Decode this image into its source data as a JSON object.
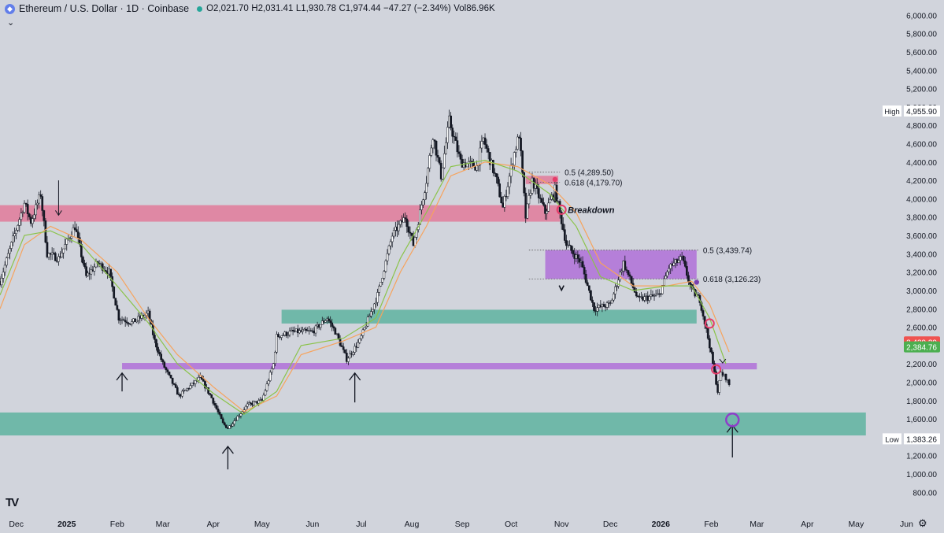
{
  "header": {
    "title": "Ethereum / U.S. Dollar · 1D · Coinbase",
    "open": "O2,021.70",
    "high": "H2,031.41",
    "low": "L1,930.78",
    "close": "C1,974.44",
    "change": "−47.27 (−2.34%)",
    "volume": "Vol86.96K"
  },
  "chevron_icon": "chevron-down-icon",
  "tv_logo": "TV",
  "settings_icon": "gear-icon",
  "chart_data": {
    "type": "candlestick",
    "title": "Ethereum / U.S. Dollar · 1D · Coinbase",
    "ylim": [
      640,
      6080
    ],
    "y_ticks": [
      800,
      1000,
      1200,
      1400,
      1600,
      1800,
      2000,
      2200,
      2400,
      2600,
      2800,
      3000,
      3200,
      3400,
      3600,
      3800,
      4000,
      4200,
      4400,
      4600,
      4800,
      5000,
      5200,
      5400,
      5600,
      5800,
      6000
    ],
    "y_tick_labels": [
      "800.00",
      "1,000.00",
      "1,200.00",
      "1,400.00",
      "1,600.00",
      "1,800.00",
      "2,000.00",
      "2,200.00",
      "2,400.00",
      "2,600.00",
      "2,800.00",
      "3,000.00",
      "3,200.00",
      "3,400.00",
      "3,600.00",
      "3,800.00",
      "4,000.00",
      "4,200.00",
      "4,400.00",
      "4,600.00",
      "4,800.00",
      "5,000.00",
      "5,200.00",
      "5,400.00",
      "5,600.00",
      "5,800.00",
      "6,000.00"
    ],
    "x_start": "2024-11-21",
    "x_end": "2026-06-24",
    "x_ticks": [
      {
        "label": "Dec",
        "date": "2024-12-01",
        "bold": false
      },
      {
        "label": "2025",
        "date": "2025-01-01",
        "bold": true
      },
      {
        "label": "Feb",
        "date": "2025-02-01",
        "bold": false
      },
      {
        "label": "Mar",
        "date": "2025-03-01",
        "bold": false
      },
      {
        "label": "Apr",
        "date": "2025-04-01",
        "bold": false
      },
      {
        "label": "May",
        "date": "2025-05-01",
        "bold": false
      },
      {
        "label": "Jun",
        "date": "2025-06-01",
        "bold": false
      },
      {
        "label": "Jul",
        "date": "2025-07-01",
        "bold": false
      },
      {
        "label": "Aug",
        "date": "2025-08-01",
        "bold": false
      },
      {
        "label": "Sep",
        "date": "2025-09-01",
        "bold": false
      },
      {
        "label": "Oct",
        "date": "2025-10-01",
        "bold": false
      },
      {
        "label": "Nov",
        "date": "2025-11-01",
        "bold": false
      },
      {
        "label": "Dec",
        "date": "2025-12-01",
        "bold": false
      },
      {
        "label": "2026",
        "date": "2026-01-01",
        "bold": true
      },
      {
        "label": "Feb",
        "date": "2026-02-01",
        "bold": false
      },
      {
        "label": "Mar",
        "date": "2026-03-01",
        "bold": false
      },
      {
        "label": "Apr",
        "date": "2026-04-01",
        "bold": false
      },
      {
        "label": "May",
        "date": "2026-05-01",
        "bold": false
      },
      {
        "label": "Jun",
        "date": "2026-06-01",
        "bold": false
      }
    ],
    "price_path": [
      [
        "2024-11-21",
        3100
      ],
      [
        "2024-11-28",
        3500
      ],
      [
        "2024-12-06",
        3950
      ],
      [
        "2024-12-10",
        3750
      ],
      [
        "2024-12-16",
        4050
      ],
      [
        "2024-12-20",
        3400
      ],
      [
        "2024-12-27",
        3350
      ],
      [
        "2025-01-06",
        3700
      ],
      [
        "2025-01-13",
        3150
      ],
      [
        "2025-01-20",
        3300
      ],
      [
        "2025-01-27",
        3200
      ],
      [
        "2025-02-02",
        2700
      ],
      [
        "2025-02-10",
        2650
      ],
      [
        "2025-02-20",
        2750
      ],
      [
        "2025-02-24",
        2450
      ],
      [
        "2025-03-01",
        2200
      ],
      [
        "2025-03-11",
        1850
      ],
      [
        "2025-03-24",
        2050
      ],
      [
        "2025-03-31",
        1830
      ],
      [
        "2025-04-07",
        1550
      ],
      [
        "2025-04-10",
        1500
      ],
      [
        "2025-04-22",
        1750
      ],
      [
        "2025-05-01",
        1800
      ],
      [
        "2025-05-08",
        2200
      ],
      [
        "2025-05-10",
        2500
      ],
      [
        "2025-05-20",
        2550
      ],
      [
        "2025-06-01",
        2550
      ],
      [
        "2025-06-10",
        2700
      ],
      [
        "2025-06-15",
        2550
      ],
      [
        "2025-06-22",
        2250
      ],
      [
        "2025-06-30",
        2450
      ],
      [
        "2025-07-11",
        2950
      ],
      [
        "2025-07-20",
        3600
      ],
      [
        "2025-07-28",
        3800
      ],
      [
        "2025-08-02",
        3500
      ],
      [
        "2025-08-10",
        4200
      ],
      [
        "2025-08-14",
        4700
      ],
      [
        "2025-08-19",
        4250
      ],
      [
        "2025-08-24",
        4850
      ],
      [
        "2025-08-31",
        4400
      ],
      [
        "2025-09-10",
        4350
      ],
      [
        "2025-09-14",
        4650
      ],
      [
        "2025-09-22",
        4200
      ],
      [
        "2025-09-26",
        3900
      ],
      [
        "2025-10-03",
        4500
      ],
      [
        "2025-10-06",
        4700
      ],
      [
        "2025-10-10",
        3800
      ],
      [
        "2025-10-14",
        4200
      ],
      [
        "2025-10-22",
        3850
      ],
      [
        "2025-10-28",
        4100
      ],
      [
        "2025-11-04",
        3500
      ],
      [
        "2025-11-13",
        3300
      ],
      [
        "2025-11-21",
        2800
      ],
      [
        "2025-12-01",
        2850
      ],
      [
        "2025-12-09",
        3300
      ],
      [
        "2025-12-18",
        2900
      ],
      [
        "2025-12-31",
        2950
      ],
      [
        "2026-01-06",
        3250
      ],
      [
        "2026-01-14",
        3350
      ],
      [
        "2026-01-20",
        3000
      ],
      [
        "2026-01-25",
        2900
      ],
      [
        "2026-01-31",
        2400
      ],
      [
        "2026-02-05",
        1900
      ],
      [
        "2026-02-07",
        2100
      ],
      [
        "2026-02-10",
        2050
      ],
      [
        "2026-02-12",
        1974
      ]
    ],
    "ma_lines": [
      {
        "color": "#f7a35c",
        "points": [
          [
            "2024-11-21",
            2800
          ],
          [
            "2024-12-06",
            3500
          ],
          [
            "2024-12-22",
            3700
          ],
          [
            "2025-01-10",
            3550
          ],
          [
            "2025-02-01",
            3200
          ],
          [
            "2025-02-20",
            2700
          ],
          [
            "2025-03-10",
            2300
          ],
          [
            "2025-04-01",
            1950
          ],
          [
            "2025-04-20",
            1680
          ],
          [
            "2025-05-10",
            1850
          ],
          [
            "2025-05-25",
            2300
          ],
          [
            "2025-06-20",
            2450
          ],
          [
            "2025-07-10",
            2600
          ],
          [
            "2025-07-25",
            3200
          ],
          [
            "2025-08-10",
            3700
          ],
          [
            "2025-08-25",
            4250
          ],
          [
            "2025-09-15",
            4400
          ],
          [
            "2025-10-05",
            4350
          ],
          [
            "2025-10-25",
            4150
          ],
          [
            "2025-11-10",
            3850
          ],
          [
            "2025-11-25",
            3300
          ],
          [
            "2025-12-15",
            3050
          ],
          [
            "2026-01-05",
            3050
          ],
          [
            "2026-01-20",
            3100
          ],
          [
            "2026-01-31",
            2850
          ],
          [
            "2026-02-12",
            2330
          ]
        ]
      },
      {
        "color": "#8bc34a",
        "points": [
          [
            "2024-11-21",
            2950
          ],
          [
            "2024-12-06",
            3600
          ],
          [
            "2024-12-22",
            3650
          ],
          [
            "2025-01-10",
            3500
          ],
          [
            "2025-02-01",
            3050
          ],
          [
            "2025-02-20",
            2650
          ],
          [
            "2025-03-10",
            2200
          ],
          [
            "2025-04-01",
            1880
          ],
          [
            "2025-04-20",
            1650
          ],
          [
            "2025-05-10",
            1900
          ],
          [
            "2025-05-25",
            2400
          ],
          [
            "2025-06-20",
            2480
          ],
          [
            "2025-07-10",
            2700
          ],
          [
            "2025-07-25",
            3350
          ],
          [
            "2025-08-10",
            3850
          ],
          [
            "2025-08-25",
            4350
          ],
          [
            "2025-09-15",
            4420
          ],
          [
            "2025-10-05",
            4300
          ],
          [
            "2025-10-25",
            4050
          ],
          [
            "2025-11-10",
            3700
          ],
          [
            "2025-11-25",
            3150
          ],
          [
            "2025-12-15",
            3000
          ],
          [
            "2026-01-05",
            3050
          ],
          [
            "2026-01-20",
            3050
          ],
          [
            "2026-01-31",
            2700
          ],
          [
            "2026-02-10",
            2200
          ]
        ]
      }
    ],
    "zones": [
      {
        "color": "#e27a9a",
        "opacity": 0.85,
        "x0": "2024-11-21",
        "x1": "2025-10-31",
        "y0": 3750,
        "y1": 3930
      },
      {
        "color": "#e27a9a",
        "opacity": 0.85,
        "x0": "2025-10-10",
        "x1": "2025-10-30",
        "y0": 4160,
        "y1": 4250
      },
      {
        "color": "#b070d8",
        "opacity": 0.85,
        "x0": "2025-10-22",
        "x1": "2026-01-23",
        "y0": 3126,
        "y1": 3440
      },
      {
        "color": "#5fb3a0",
        "opacity": 0.85,
        "x0": "2025-05-13",
        "x1": "2026-01-23",
        "y0": 2640,
        "y1": 2790
      },
      {
        "color": "#b070d8",
        "opacity": 0.85,
        "x0": "2025-02-04",
        "x1": "2026-02-29",
        "y0": 2140,
        "y1": 2210
      },
      {
        "color": "#5fb3a0",
        "opacity": 0.85,
        "x0": "2024-11-21",
        "x1": "2026-05-07",
        "y0": 1420,
        "y1": 1670
      }
    ],
    "fib_levels": [
      {
        "x0": "2025-10-12",
        "x1": "2025-10-31",
        "y": 4289.5,
        "label": "0.5 (4,289.50)"
      },
      {
        "x0": "2025-10-12",
        "x1": "2025-10-31",
        "y": 4179.7,
        "label": "0.618 (4,179.70)"
      },
      {
        "x0": "2025-10-12",
        "x1": "2026-01-24",
        "y": 3439.74,
        "label": "0.5 (3,439.74)"
      },
      {
        "x0": "2025-10-12",
        "x1": "2026-01-24",
        "y": 3126.23,
        "label": "0.618 (3,126.23)"
      }
    ],
    "annotations": [
      {
        "text": "Breakdown",
        "date": "2025-10-31",
        "y": 3880
      }
    ],
    "up_arrows": [
      {
        "date": "2025-02-04",
        "y_top": 2100,
        "y_bottom": 1900
      },
      {
        "date": "2025-04-10",
        "y_top": 1300,
        "y_bottom": 1050
      },
      {
        "date": "2025-06-27",
        "y_top": 2100,
        "y_bottom": 1780
      },
      {
        "date": "2026-02-14",
        "y_top": 1530,
        "y_bottom": 1180
      }
    ],
    "down_arrows": [
      {
        "date": "2024-12-27",
        "y_top": 4200,
        "y_bottom": 3820
      },
      {
        "date": "2025-10-28",
        "y_top": 4080,
        "y_bottom": 3960
      }
    ],
    "markers": [
      {
        "date": "2025-10-28",
        "y": 4210,
        "color": "#e53d6a",
        "kind": "dot"
      },
      {
        "date": "2025-11-01",
        "y": 3880,
        "color": "#e53d6a",
        "kind": "ring"
      },
      {
        "date": "2025-11-01",
        "y": 3020,
        "color": "#131722",
        "kind": "curl"
      },
      {
        "date": "2026-01-23",
        "y": 3090,
        "color": "#7b3fb0",
        "kind": "dot"
      },
      {
        "date": "2026-01-31",
        "y": 2640,
        "color": "#e53d6a",
        "kind": "ring"
      },
      {
        "date": "2026-02-04",
        "y": 2140,
        "color": "#e53d6a",
        "kind": "ring"
      },
      {
        "date": "2026-02-08",
        "y": 2210,
        "color": "#131722",
        "kind": "smallarrow"
      },
      {
        "date": "2026-02-14",
        "y": 1590,
        "color": "#8e3fc9",
        "kind": "bigring"
      }
    ],
    "price_labels": [
      {
        "text": "High",
        "value": "4,955.90",
        "y": 4955.9,
        "style": "tag"
      },
      {
        "text": "Low",
        "value": "1,383.26",
        "y": 1383.26,
        "style": "tag"
      },
      {
        "value": "2,439.39",
        "y": 2439.39,
        "bg": "#ef5350"
      },
      {
        "value": "2,384.76",
        "y": 2384.76,
        "bg": "#4caf50"
      }
    ]
  }
}
